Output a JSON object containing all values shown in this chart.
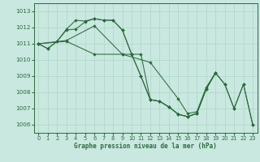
{
  "background_color": "#c8e8e0",
  "grid_color": "#b0d4c8",
  "line_color": "#2d6b3c",
  "xlabel": "Graphe pression niveau de la mer (hPa)",
  "ylim": [
    1005.5,
    1013.5
  ],
  "xlim": [
    -0.5,
    23.5
  ],
  "yticks": [
    1006,
    1007,
    1008,
    1009,
    1010,
    1011,
    1012,
    1013
  ],
  "xticks": [
    0,
    1,
    2,
    3,
    4,
    5,
    6,
    7,
    8,
    9,
    10,
    11,
    12,
    13,
    14,
    15,
    16,
    17,
    18,
    19,
    20,
    21,
    22,
    23
  ],
  "series": [
    {
      "x": [
        0,
        1,
        2,
        3,
        4,
        5,
        6,
        7,
        8,
        9,
        10,
        11,
        12,
        13,
        14,
        15,
        16,
        17,
        18,
        19
      ],
      "y": [
        1011.0,
        1010.7,
        1011.15,
        1011.9,
        1012.45,
        1012.4,
        1012.55,
        1012.45,
        1012.45,
        1011.85,
        1010.35,
        1010.35,
        1007.55,
        1007.45,
        1007.1,
        1006.65,
        1006.5,
        1006.7,
        1008.2,
        1009.2
      ]
    },
    {
      "x": [
        0,
        1,
        2,
        3,
        4,
        5,
        6,
        7,
        8,
        9,
        10,
        11,
        12,
        13,
        14,
        15,
        16,
        17,
        18,
        19
      ],
      "y": [
        1011.0,
        1010.7,
        1011.15,
        1011.85,
        1011.9,
        1012.35,
        1012.55,
        1012.45,
        1012.45,
        1011.85,
        1010.35,
        1009.0,
        1007.55,
        1007.45,
        1007.1,
        1006.65,
        1006.5,
        1006.7,
        1008.2,
        1009.2
      ]
    },
    {
      "x": [
        0,
        3,
        6,
        9,
        12,
        15,
        16,
        17,
        18,
        19,
        20,
        21,
        22,
        23
      ],
      "y": [
        1011.0,
        1011.2,
        1012.1,
        1010.35,
        1009.85,
        1007.6,
        1006.7,
        1006.8,
        1008.3,
        1009.2,
        1008.5,
        1007.0,
        1008.5,
        1006.0
      ]
    },
    {
      "x": [
        0,
        3,
        6,
        9,
        10,
        11,
        12,
        13,
        14,
        15,
        16,
        17,
        18,
        19,
        20,
        21,
        22,
        23
      ],
      "y": [
        1011.0,
        1011.15,
        1010.35,
        1010.35,
        1010.35,
        1009.0,
        1007.55,
        1007.45,
        1007.1,
        1006.65,
        1006.5,
        1006.7,
        1008.2,
        1009.2,
        1008.5,
        1007.0,
        1008.5,
        1006.0
      ]
    }
  ]
}
